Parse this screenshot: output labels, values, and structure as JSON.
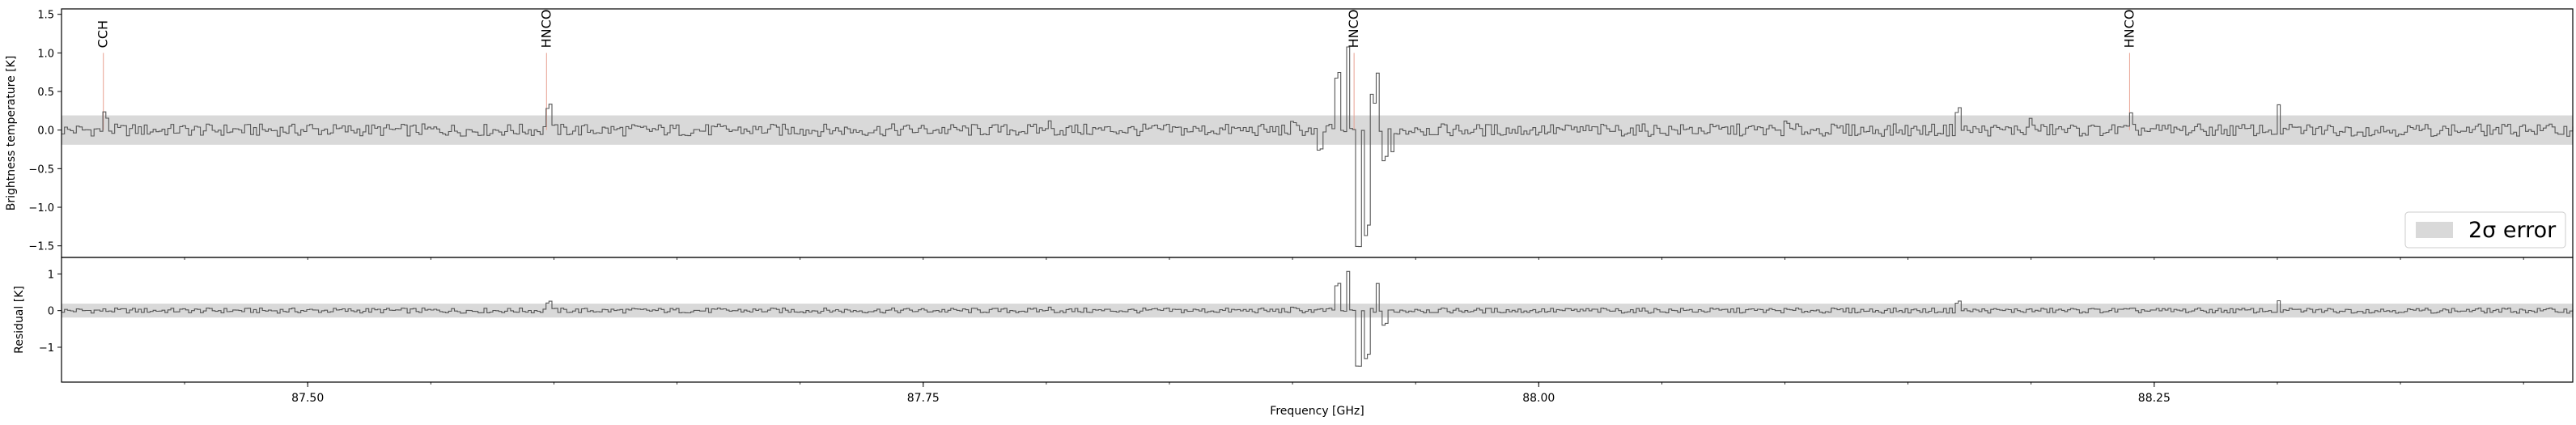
{
  "chart_data": [
    {
      "type": "line",
      "panel": "spectrum",
      "xlim": [
        87.4,
        88.42
      ],
      "ylim": [
        -1.65,
        1.57
      ],
      "ylabel": "Brightness temperature [K]",
      "yticks": [
        1.5,
        1.0,
        0.5,
        0.0,
        -0.5,
        -1.0,
        -1.5
      ],
      "ytick_labels": [
        "1.5",
        "1.0",
        "0.5",
        "0.0",
        "−0.5",
        "−1.0",
        "−1.5"
      ],
      "grid": false,
      "legend": {
        "position": "lower-right",
        "entries": [
          {
            "label": "2σ error",
            "color": "#d9d9d9"
          }
        ]
      },
      "error_band": {
        "lower": -0.19,
        "upper": 0.19,
        "color": "#d9d9d9"
      },
      "line_markers": [
        {
          "label": "CCH",
          "freq": 87.417,
          "peak": 1.0
        },
        {
          "label": "HNCO",
          "freq": 87.597,
          "peak": 1.0
        },
        {
          "label": "HNCO",
          "freq": 87.925,
          "peak": 1.0
        },
        {
          "label": "HNCO",
          "freq": 88.24,
          "peak": 1.0
        }
      ],
      "series": [
        {
          "color": "#555555",
          "drawstyle": "steps",
          "x": [
            87.4,
            87.417,
            87.5,
            87.597,
            87.7,
            87.8,
            87.9,
            87.911,
            87.918,
            87.922,
            87.926,
            87.93,
            87.932,
            87.934,
            87.937,
            87.94,
            87.95,
            88.0,
            88.1,
            88.17,
            88.2,
            88.24,
            88.3,
            88.4,
            88.42
          ],
          "y": [
            0.0,
            0.18,
            0.03,
            0.33,
            0.05,
            0.07,
            0.04,
            -0.3,
            0.7,
            1.0,
            -1.55,
            -1.3,
            0.4,
            0.75,
            -0.4,
            -0.3,
            0.05,
            0.0,
            0.05,
            0.28,
            0.1,
            0.15,
            0.25,
            0.05,
            0.0
          ]
        }
      ]
    },
    {
      "type": "line",
      "panel": "residual",
      "xlim": [
        87.4,
        88.42
      ],
      "ylim": [
        -1.95,
        1.45
      ],
      "ylabel": "Residual [K]",
      "xlabel": "Frequency [GHz]",
      "yticks": [
        1,
        0,
        -1
      ],
      "ytick_labels": [
        "1",
        "0",
        "−1"
      ],
      "xticks": [
        87.5,
        87.75,
        88.0,
        88.25
      ],
      "xtick_labels": [
        "87.50",
        "87.75",
        "88.00",
        "88.25"
      ],
      "grid": false,
      "error_band": {
        "lower": -0.19,
        "upper": 0.19,
        "color": "#d9d9d9"
      },
      "series": [
        {
          "color": "#555555",
          "drawstyle": "steps",
          "x": [
            87.4,
            87.597,
            87.8,
            87.9,
            87.918,
            87.922,
            87.926,
            87.93,
            87.934,
            87.937,
            87.95,
            88.17,
            88.3,
            88.42
          ],
          "y": [
            0.0,
            0.25,
            0.05,
            0.03,
            0.7,
            1.0,
            -1.55,
            -1.25,
            0.75,
            -0.4,
            0.05,
            0.25,
            0.2,
            0.0
          ]
        }
      ]
    }
  ]
}
